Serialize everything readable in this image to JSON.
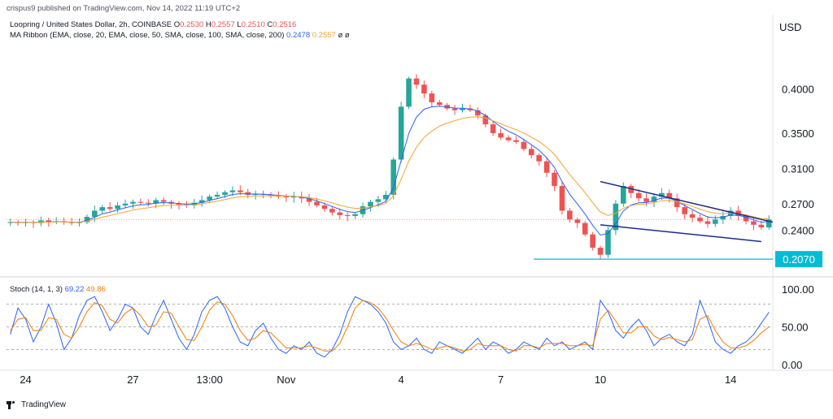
{
  "header": {
    "publisher": "crispus9 published on TradingView.com, Nov 14, 2022 11:19 UTC+2",
    "symbol": "Loopring / United States Dollar, 2h, COINBASE",
    "o_label": "O",
    "o_value": "0.2530",
    "h_label": "H",
    "h_value": "0.2557",
    "l_label": "L",
    "l_value": "0.2510",
    "c_label": "C",
    "c_value": "0.2516",
    "ma_ribbon": "MA Ribbon (EMA, close, 20, EMA, close, 50, SMA, close, 100, SMA, close, 200)",
    "ma_values": [
      "0.2478",
      "0.2557",
      "ø",
      "ø"
    ]
  },
  "stoch_legend": {
    "label": "Stoch (14, 1, 3)",
    "k": "69.22",
    "d": "49.86"
  },
  "brand": "TradingView",
  "colors": {
    "up": "#26a69a",
    "down": "#ef5350",
    "ema20": "#2962ff",
    "ema50": "#f7a32a",
    "stoch_k": "#2962ff",
    "stoch_d": "#f57c00",
    "support": "#00bcd4",
    "wedge": "#1e2a8c",
    "axis_text": "#131722"
  },
  "chart_data": [
    {
      "type": "candlestick",
      "currency": "USD",
      "y_ticks": [
        "0.4000",
        "0.3500",
        "0.3100",
        "0.2700",
        "0.2400"
      ],
      "ylim": [
        0.197,
        0.455
      ],
      "x_ticks": [
        "24",
        "27",
        "13:00",
        "Nov",
        "4",
        "7",
        "10",
        "14"
      ],
      "support_level": 0.207,
      "support_label": "0.2070",
      "wedge_upper": [
        [
          "Nov 10 12:00",
          0.295
        ],
        [
          "Nov 14 12:00",
          0.249
        ]
      ],
      "wedge_lower": [
        [
          "Nov 10 12:00",
          0.246
        ],
        [
          "Nov 14 10:00",
          0.227
        ]
      ],
      "price_path": [
        0.249,
        0.248,
        0.249,
        0.248,
        0.251,
        0.249,
        0.25,
        0.249,
        0.248,
        0.249,
        0.255,
        0.262,
        0.266,
        0.264,
        0.268,
        0.27,
        0.272,
        0.271,
        0.27,
        0.274,
        0.272,
        0.27,
        0.269,
        0.268,
        0.271,
        0.274,
        0.278,
        0.28,
        0.283,
        0.285,
        0.283,
        0.28,
        0.281,
        0.28,
        0.279,
        0.278,
        0.277,
        0.278,
        0.276,
        0.272,
        0.268,
        0.264,
        0.26,
        0.257,
        0.256,
        0.258,
        0.267,
        0.272,
        0.275,
        0.28,
        0.32,
        0.38,
        0.412,
        0.405,
        0.395,
        0.385,
        0.382,
        0.378,
        0.376,
        0.378,
        0.376,
        0.37,
        0.36,
        0.35,
        0.345,
        0.342,
        0.34,
        0.332,
        0.325,
        0.318,
        0.305,
        0.29,
        0.262,
        0.252,
        0.248,
        0.235,
        0.22,
        0.212,
        0.24,
        0.27,
        0.29,
        0.282,
        0.276,
        0.272,
        0.278,
        0.282,
        0.276,
        0.266,
        0.258,
        0.254,
        0.25,
        0.247,
        0.252,
        0.256,
        0.262,
        0.256,
        0.25,
        0.246,
        0.243,
        0.252
      ]
    },
    {
      "type": "line",
      "name": "Stoch (14, 1, 3)",
      "y_ticks": [
        "100.00",
        "50.00",
        "0.00"
      ],
      "ylim": [
        0,
        100
      ],
      "levels": [
        80,
        50,
        20
      ],
      "series": [
        {
          "name": "K",
          "values": [
            40,
            75,
            60,
            30,
            50,
            80,
            55,
            20,
            35,
            65,
            85,
            90,
            70,
            45,
            60,
            80,
            75,
            50,
            40,
            65,
            85,
            60,
            35,
            20,
            40,
            70,
            85,
            90,
            75,
            50,
            30,
            25,
            45,
            55,
            35,
            20,
            15,
            25,
            20,
            30,
            15,
            10,
            20,
            40,
            70,
            90,
            85,
            80,
            70,
            55,
            30,
            20,
            25,
            35,
            20,
            15,
            30,
            25,
            20,
            15,
            25,
            35,
            20,
            30,
            25,
            15,
            20,
            30,
            25,
            20,
            35,
            25,
            30,
            20,
            25,
            30,
            20,
            85,
            70,
            45,
            35,
            50,
            60,
            45,
            25,
            35,
            40,
            30,
            25,
            40,
            85,
            60,
            30,
            20,
            15,
            25,
            30,
            40,
            55,
            69.22
          ]
        },
        {
          "name": "D",
          "values": [
            45,
            60,
            62,
            45,
            45,
            62,
            60,
            40,
            35,
            50,
            70,
            82,
            78,
            60,
            55,
            68,
            75,
            65,
            50,
            52,
            70,
            68,
            50,
            33,
            32,
            50,
            72,
            83,
            80,
            65,
            45,
            32,
            35,
            45,
            42,
            32,
            22,
            22,
            22,
            25,
            22,
            18,
            18,
            28,
            50,
            75,
            85,
            82,
            75,
            62,
            45,
            30,
            25,
            28,
            25,
            20,
            22,
            25,
            22,
            18,
            20,
            28,
            25,
            25,
            25,
            20,
            18,
            25,
            25,
            22,
            28,
            28,
            28,
            25,
            25,
            27,
            25,
            60,
            72,
            58,
            42,
            42,
            50,
            50,
            38,
            33,
            36,
            33,
            30,
            33,
            60,
            65,
            45,
            30,
            22,
            22,
            25,
            32,
            42,
            49.86
          ]
        }
      ]
    }
  ]
}
